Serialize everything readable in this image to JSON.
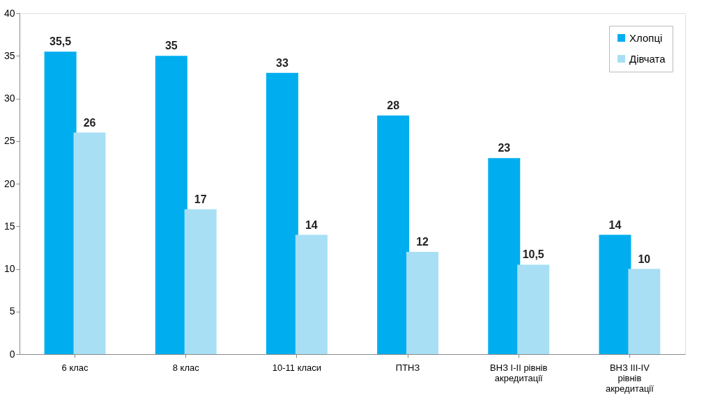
{
  "chart_data": {
    "type": "bar",
    "categories": [
      "6 клас",
      "8 клас",
      "10-11 класи",
      "ПТНЗ",
      "ВНЗ I-II рівнів акредитації",
      "ВНЗ III-IV рівнів акредитації"
    ],
    "series": [
      {
        "name": "Хлопці",
        "color": "#00aeef",
        "values": [
          35.5,
          35,
          33,
          28,
          23,
          14
        ],
        "value_labels": [
          "35,5",
          "35",
          "33",
          "28",
          "23",
          "14"
        ]
      },
      {
        "name": "Дівчата",
        "color": "#a8dff5",
        "values": [
          26,
          17,
          14,
          12,
          10.5,
          10
        ],
        "value_labels": [
          "26",
          "17",
          "14",
          "12",
          "10,5",
          "10"
        ]
      }
    ],
    "ylim": [
      0,
      40
    ],
    "yticks": [
      0,
      5,
      10,
      15,
      20,
      25,
      30,
      35,
      40
    ],
    "grid": false,
    "legend": "top right"
  }
}
